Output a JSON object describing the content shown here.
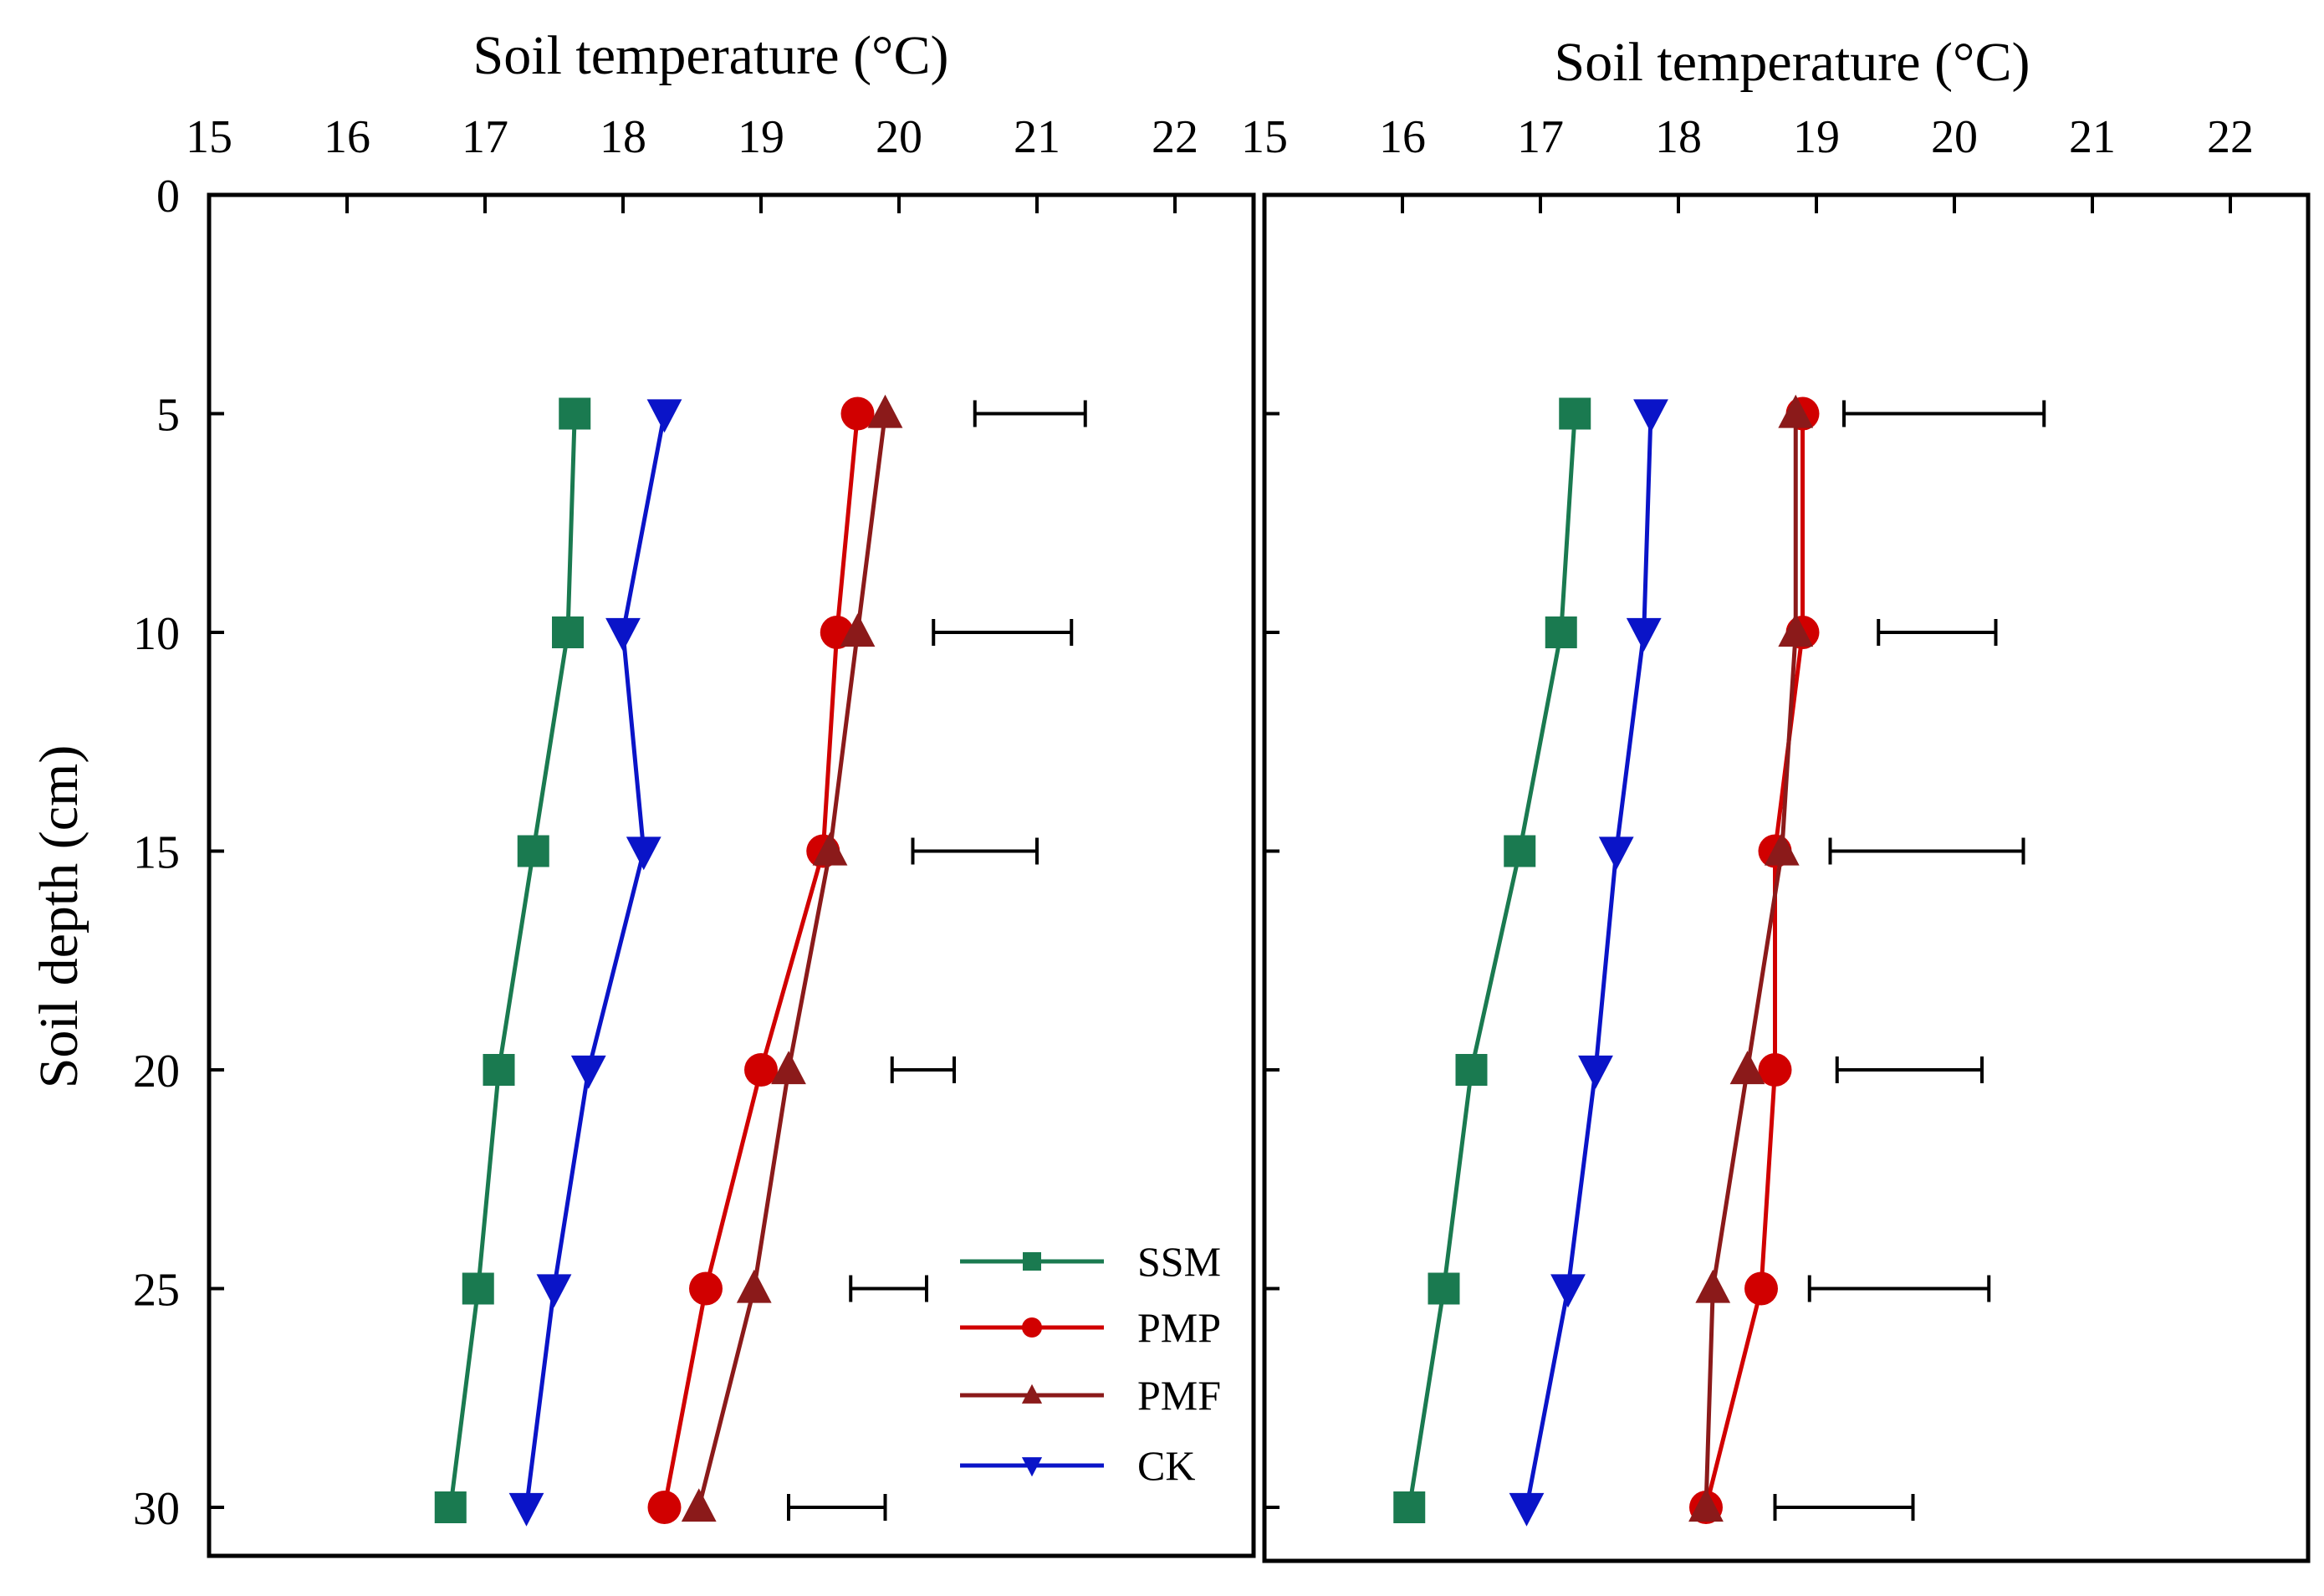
{
  "chart_data": [
    {
      "type": "line",
      "panel": "left",
      "title": "",
      "xlabel": "Soil temperature (°C)",
      "ylabel": "Soil depth (cm)",
      "xlim": [
        15,
        22.4
      ],
      "ylim": [
        0,
        31
      ],
      "x_ticks": [
        "15",
        "16",
        "17",
        "18",
        "19",
        "20",
        "21",
        "22"
      ],
      "y_ticks": [
        "0",
        "5",
        "10",
        "15",
        "20",
        "25",
        "30"
      ],
      "y_reversed": true,
      "x_axis_position": "top",
      "depths": [
        5,
        10,
        15,
        20,
        25,
        30
      ],
      "series": [
        {
          "name": "SSM",
          "color": "#1a7a50",
          "marker": "square",
          "values": [
            17.65,
            17.6,
            17.35,
            17.1,
            16.95,
            16.75
          ]
        },
        {
          "name": "PMP",
          "color": "#d10000",
          "marker": "circle",
          "values": [
            19.7,
            19.55,
            19.45,
            19.0,
            18.6,
            18.3
          ]
        },
        {
          "name": "PMF",
          "color": "#8b1a1a",
          "marker": "triangle-up",
          "values": [
            19.9,
            19.7,
            19.5,
            19.2,
            18.95,
            18.55
          ]
        },
        {
          "name": "CK",
          "color": "#0a14c8",
          "marker": "triangle-down",
          "values": [
            18.3,
            18.0,
            18.15,
            17.75,
            17.5,
            17.3
          ]
        }
      ],
      "error_bars": [
        {
          "depth": 5,
          "x_start": 20.55,
          "x_end": 21.35
        },
        {
          "depth": 10,
          "x_start": 20.25,
          "x_end": 21.25
        },
        {
          "depth": 15,
          "x_start": 20.1,
          "x_end": 21.0
        },
        {
          "depth": 20,
          "x_start": 19.95,
          "x_end": 20.4
        },
        {
          "depth": 25,
          "x_start": 19.65,
          "x_end": 20.2
        },
        {
          "depth": 30,
          "x_start": 19.2,
          "x_end": 19.9
        }
      ],
      "legend": {
        "position": "bottom-right",
        "entries": [
          "SSM",
          "PMP",
          "PMF",
          "CK"
        ]
      }
    },
    {
      "type": "line",
      "panel": "right",
      "title": "",
      "xlabel": "Soil temperature (°C)",
      "ylabel": "",
      "xlim": [
        15,
        22.4
      ],
      "ylim": [
        0,
        31
      ],
      "x_ticks": [
        "15",
        "16",
        "17",
        "18",
        "19",
        "20",
        "21",
        "22"
      ],
      "y_reversed": true,
      "x_axis_position": "top",
      "depths": [
        5,
        10,
        15,
        20,
        25,
        30
      ],
      "series": [
        {
          "name": "SSM",
          "color": "#1a7a50",
          "marker": "square",
          "values": [
            17.25,
            17.15,
            16.85,
            16.5,
            16.3,
            16.05
          ]
        },
        {
          "name": "PMP",
          "color": "#d10000",
          "marker": "circle",
          "values": [
            18.9,
            18.9,
            18.7,
            18.7,
            18.6,
            18.2
          ]
        },
        {
          "name": "PMF",
          "color": "#8b1a1a",
          "marker": "triangle-up",
          "values": [
            18.85,
            18.85,
            18.75,
            18.5,
            18.25,
            18.2
          ]
        },
        {
          "name": "CK",
          "color": "#0a14c8",
          "marker": "triangle-down",
          "values": [
            17.8,
            17.75,
            17.55,
            17.4,
            17.2,
            16.9
          ]
        }
      ],
      "error_bars": [
        {
          "depth": 5,
          "x_start": 19.2,
          "x_end": 20.65
        },
        {
          "depth": 10,
          "x_start": 19.45,
          "x_end": 20.3
        },
        {
          "depth": 15,
          "x_start": 19.1,
          "x_end": 20.5
        },
        {
          "depth": 20,
          "x_start": 19.15,
          "x_end": 20.2
        },
        {
          "depth": 25,
          "x_start": 18.95,
          "x_end": 20.25
        },
        {
          "depth": 30,
          "x_start": 18.7,
          "x_end": 19.7
        }
      ]
    }
  ]
}
